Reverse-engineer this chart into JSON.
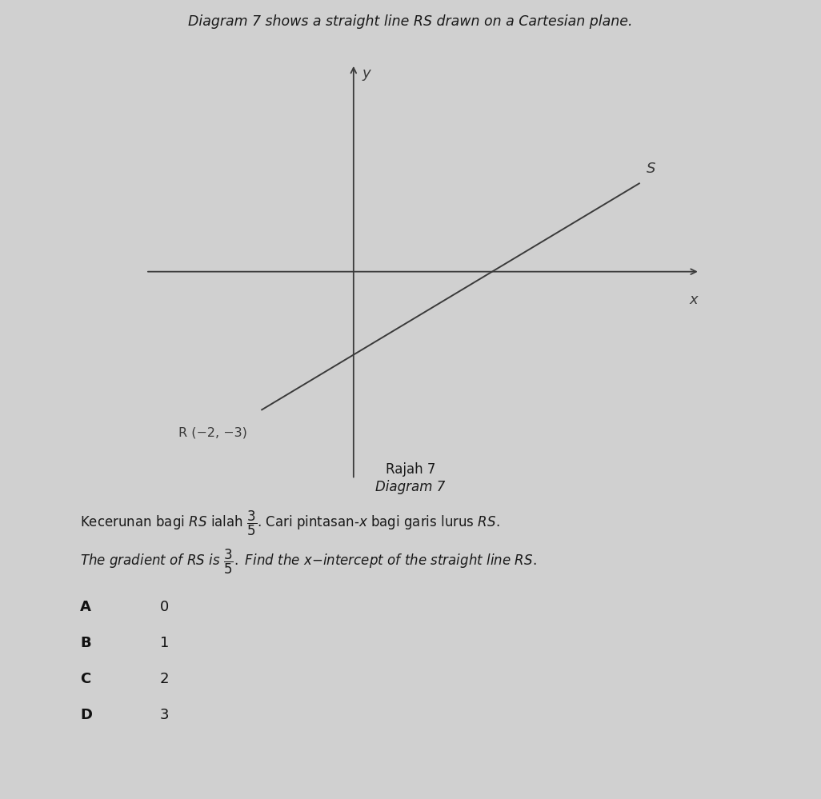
{
  "background_color": "#d0d0d0",
  "title_text": "Diagram 7 shows a straight line RS drawn on a Cartesian plane.",
  "diagram_label1": "Rajah 7",
  "diagram_label2": "Diagram 7",
  "point_R": [
    -2,
    -3
  ],
  "point_S_label": "S",
  "point_R_label": "R (-2, −3)",
  "line_color": "#3a3a3a",
  "axis_color": "#3a3a3a",
  "axis_xlim": [
    -4.5,
    7.5
  ],
  "axis_ylim": [
    -4.5,
    4.5
  ],
  "options": [
    {
      "label": "A",
      "value": "0"
    },
    {
      "label": "B",
      "value": "1"
    },
    {
      "label": "C",
      "value": "2"
    },
    {
      "label": "D",
      "value": "3"
    }
  ],
  "fig_width": 10.26,
  "fig_height": 9.99,
  "fig_dpi": 100
}
